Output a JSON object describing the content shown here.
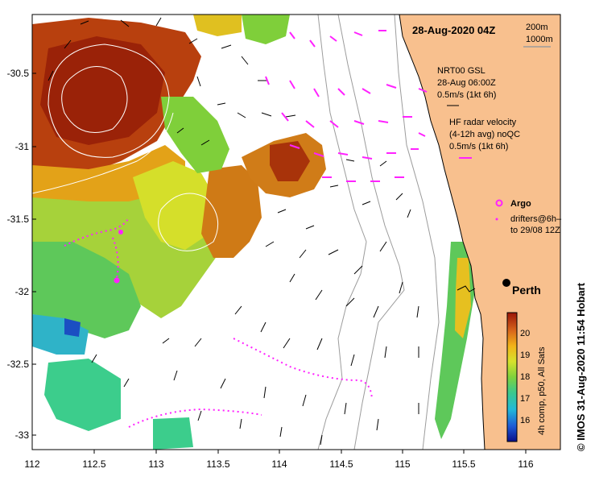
{
  "map": {
    "title": "28-Aug-2020 04Z",
    "x_ticks": [
      "112",
      "112.5",
      "113",
      "113.5",
      "114",
      "114.5",
      "115",
      "115.5",
      "116"
    ],
    "y_ticks": [
      "-30.5",
      "-31",
      "-31.5",
      "-32",
      "-32.5",
      "-33"
    ],
    "isobaths": [
      "200m",
      "1000m"
    ],
    "legend": {
      "nrt_line1": "NRT00 GSL",
      "nrt_line2": "28-Aug 06:00Z",
      "nrt_line3": "0.5m/s (1kt 6h)",
      "hf_line1": "HF radar velocity",
      "hf_line2": "(4-12h avg) noQC",
      "hf_line3": "0.5m/s (1kt 6h)",
      "argo": "Argo",
      "drifters_line1": "drifters@6h–",
      "drifters_line2": "to 29/08 12Z"
    },
    "city": "Perth",
    "colorbar": {
      "ticks": [
        "20",
        "19",
        "18",
        "17",
        "16"
      ],
      "label": "4h comp, p50, All Sats"
    },
    "credit": "©  IMOS 31-Aug-2020 11:54 Hobart",
    "colors": {
      "land": "#f8c08e",
      "drifter": "#ff22ff",
      "contour": "#ffffff",
      "isobath": "#9c9c9c"
    }
  }
}
